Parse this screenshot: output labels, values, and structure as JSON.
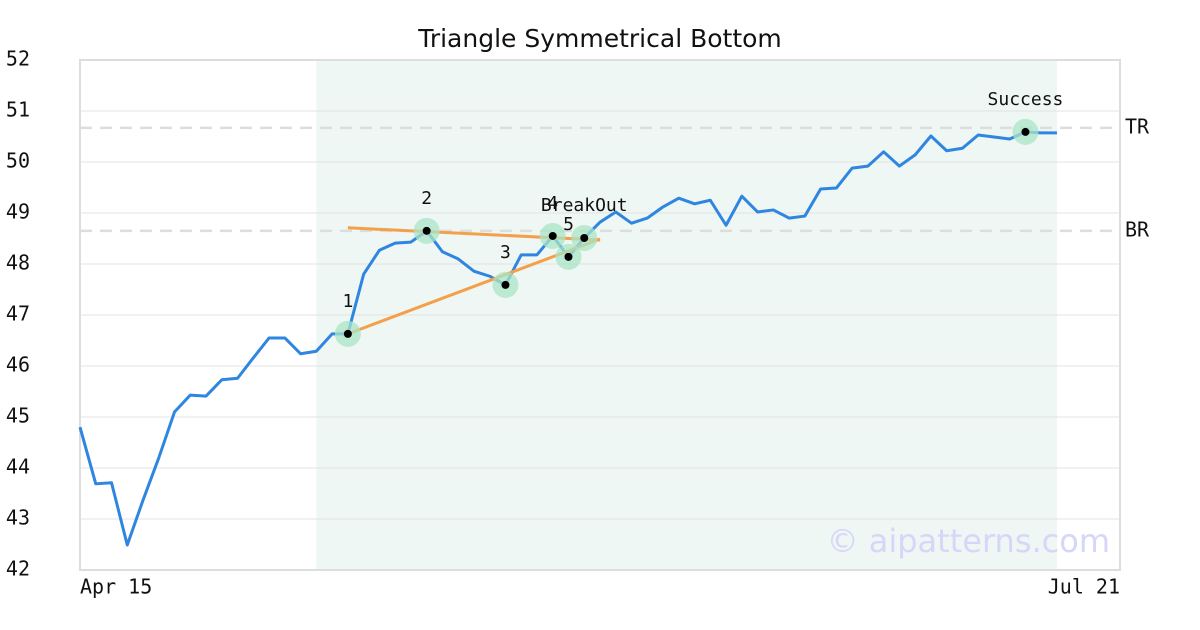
{
  "chart_data": {
    "type": "line",
    "title": "Triangle Symmetrical Bottom",
    "categories": [
      "Apr 15",
      null,
      null,
      null,
      null,
      null,
      null,
      null,
      null,
      null,
      null,
      null,
      null,
      null,
      null,
      null,
      null,
      null,
      null,
      null,
      null,
      null,
      null,
      null,
      null,
      null,
      null,
      null,
      null,
      null,
      null,
      null,
      null,
      null,
      null,
      null,
      null,
      null,
      null,
      null,
      null,
      null,
      null,
      null,
      null,
      null,
      null,
      null,
      null,
      null,
      null,
      null,
      null,
      null,
      null,
      null,
      null,
      null,
      null,
      null,
      null,
      null,
      null,
      null,
      null,
      null,
      "Jul 21"
    ],
    "series": [
      {
        "color": "#2f86e0",
        "values": [
          44.8,
          43.69,
          43.71,
          42.49,
          43.37,
          44.2,
          45.1,
          45.43,
          45.41,
          45.73,
          45.76,
          46.16,
          46.55,
          46.55,
          46.24,
          46.29,
          46.63,
          46.63,
          47.8,
          48.27,
          48.41,
          48.43,
          48.65,
          48.24,
          48.1,
          47.86,
          47.76,
          47.59,
          48.18,
          48.18,
          48.55,
          48.14,
          48.51,
          48.82,
          49.02,
          48.8,
          48.9,
          49.12,
          49.29,
          49.18,
          49.25,
          48.76,
          49.33,
          49.02,
          49.06,
          48.9,
          48.94,
          49.47,
          49.49,
          49.88,
          49.92,
          50.2,
          49.92,
          50.14,
          50.51,
          50.22,
          50.27,
          50.53,
          50.49,
          50.45,
          50.59,
          50.57,
          50.57,
          null,
          null,
          null,
          null
        ]
      }
    ],
    "ylim": [
      42,
      52
    ],
    "yticks": [
      42,
      43,
      44,
      45,
      46,
      47,
      48,
      49,
      50,
      51,
      52
    ],
    "grid": true,
    "shade": {
      "from": 15,
      "to": 62,
      "color": "#eef7f3"
    },
    "levels": [
      {
        "label": "TR",
        "value": 50.67
      },
      {
        "label": "BR",
        "value": 48.65
      }
    ],
    "trendlines": [
      {
        "color": "#f4a04a",
        "x": [
          17,
          33
        ],
        "values": [
          48.71,
          48.47
        ]
      },
      {
        "color": "#f4a04a",
        "x": [
          17,
          33
        ],
        "values": [
          46.63,
          48.49
        ]
      }
    ],
    "points": [
      {
        "label": "1",
        "index": 17,
        "value": 46.63
      },
      {
        "label": "2",
        "index": 22,
        "value": 48.65
      },
      {
        "label": "3",
        "index": 27,
        "value": 47.59
      },
      {
        "label": "4",
        "index": 30,
        "value": 48.55
      },
      {
        "label": "5",
        "index": 31,
        "value": 48.14
      },
      {
        "label": "BreakOut",
        "index": 32,
        "value": 48.51
      },
      {
        "label": "Success",
        "index": 60,
        "value": 50.59
      }
    ],
    "watermark": "© aipatterns.com"
  }
}
